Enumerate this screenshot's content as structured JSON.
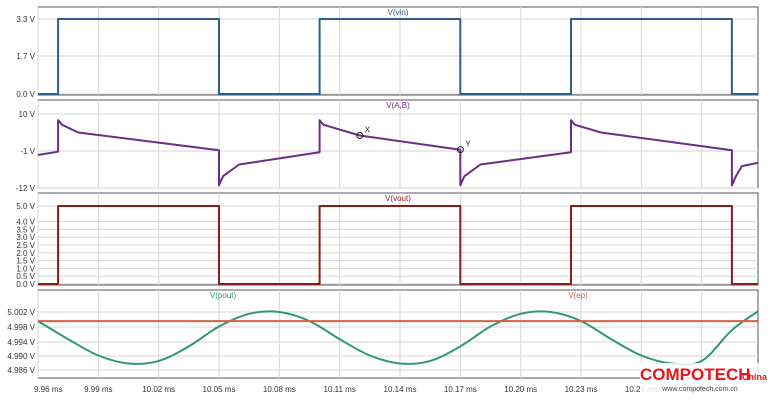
{
  "chart_data": [
    {
      "type": "line",
      "title": "V(vin)",
      "yticks": [
        "3.3 V",
        "1.7 V",
        "0.0 V"
      ],
      "ylim": [
        0,
        3.3
      ],
      "series": [
        {
          "name": "V(vin)",
          "color": "#2b5f8e",
          "x": [
            9.96,
            9.97,
            9.97,
            10.05,
            10.05,
            10.1,
            10.1,
            10.17,
            10.17,
            10.225,
            10.225,
            10.305,
            10.305,
            10.318
          ],
          "y": [
            0,
            0,
            3.3,
            3.3,
            0,
            0,
            3.3,
            3.3,
            0,
            0,
            3.3,
            3.3,
            0,
            0
          ]
        }
      ]
    },
    {
      "type": "line",
      "title": "V(A,B)",
      "yticks": [
        "10 V",
        "-1 V",
        "-12 V"
      ],
      "ylim": [
        -12,
        10
      ],
      "annotations": [
        {
          "label": "X",
          "x": 10.12,
          "y": 3.6
        },
        {
          "label": "Y",
          "x": 10.17,
          "y": -0.6
        }
      ],
      "series": [
        {
          "name": "V(A,B)",
          "color": "#6b2d86",
          "x": [
            9.96,
            9.97,
            9.97,
            9.972,
            9.98,
            10.05,
            10.05,
            10.052,
            10.06,
            10.1,
            10.1,
            10.102,
            10.12,
            10.17,
            10.17,
            10.172,
            10.18,
            10.225,
            10.225,
            10.227,
            10.24,
            10.305,
            10.305,
            10.307,
            10.31,
            10.318
          ],
          "y": [
            -2.2,
            -1.2,
            8.2,
            6.8,
            4.5,
            -0.8,
            -11.2,
            -8.5,
            -5.0,
            -1.4,
            8.2,
            6.8,
            3.6,
            -0.6,
            -11.2,
            -8.5,
            -5.0,
            -1.4,
            8.2,
            6.8,
            4.5,
            -0.8,
            -11.2,
            -8.5,
            -5.5,
            -4.5
          ]
        }
      ]
    },
    {
      "type": "line",
      "title": "V(vout)",
      "yticks": [
        "5.0 V",
        "4.0 V",
        "3.5 V",
        "3.0 V",
        "2.5 V",
        "2.0 V",
        "1.5 V",
        "1.0 V",
        "0.5 V",
        "0.0 V"
      ],
      "ylim": [
        0,
        5
      ],
      "series": [
        {
          "name": "V(vout)",
          "color": "#8b1a1a",
          "x": [
            9.96,
            9.97,
            9.97,
            10.05,
            10.05,
            10.1,
            10.1,
            10.17,
            10.17,
            10.225,
            10.225,
            10.305,
            10.305,
            10.318
          ],
          "y": [
            0,
            0,
            5,
            5,
            0,
            0,
            5,
            5,
            0,
            0,
            5,
            5,
            0,
            0
          ]
        }
      ]
    },
    {
      "type": "line",
      "xticks": [
        "9.96 ms",
        "9.99 ms",
        "10.02 ms",
        "10.05 ms",
        "10.08 ms",
        "10.11 ms",
        "10.14 ms",
        "10.17 ms",
        "10.20 ms",
        "10.23 ms",
        "10.26 ms",
        "10.29 ms"
      ],
      "xlim": [
        9.96,
        10.318
      ],
      "yticks": [
        "5.002 V",
        "4.998 V",
        "4.994 V",
        "4.990 V",
        "4.986 V"
      ],
      "ylim": [
        4.986,
        5.004
      ],
      "series": [
        {
          "name": "V(pout)",
          "color": "#2e9a6a",
          "x": [
            9.96,
            9.975,
            9.99,
            10.005,
            10.02,
            10.035,
            10.05,
            10.065,
            10.08,
            10.095,
            10.11,
            10.125,
            10.14,
            10.155,
            10.17,
            10.185,
            10.2,
            10.215,
            10.23,
            10.245,
            10.26,
            10.275,
            10.29,
            10.305,
            10.318
          ],
          "y": [
            4.9995,
            4.9945,
            4.99,
            4.9878,
            4.9885,
            4.9925,
            4.998,
            5.0015,
            5.002,
            4.9995,
            4.9945,
            4.99,
            4.9878,
            4.9885,
            4.9925,
            4.998,
            5.0015,
            5.002,
            4.9995,
            4.9945,
            4.99,
            4.9878,
            4.9885,
            4.997,
            5.0022
          ]
        },
        {
          "name": "V(ep)",
          "color": "#d9603f",
          "x": [
            9.96,
            10.318
          ],
          "y": [
            4.9995,
            4.9995
          ]
        }
      ]
    }
  ],
  "watermark": {
    "brand": "COMPOTECH",
    "suffix": "China",
    "url": "www.compotech.com.cn"
  }
}
